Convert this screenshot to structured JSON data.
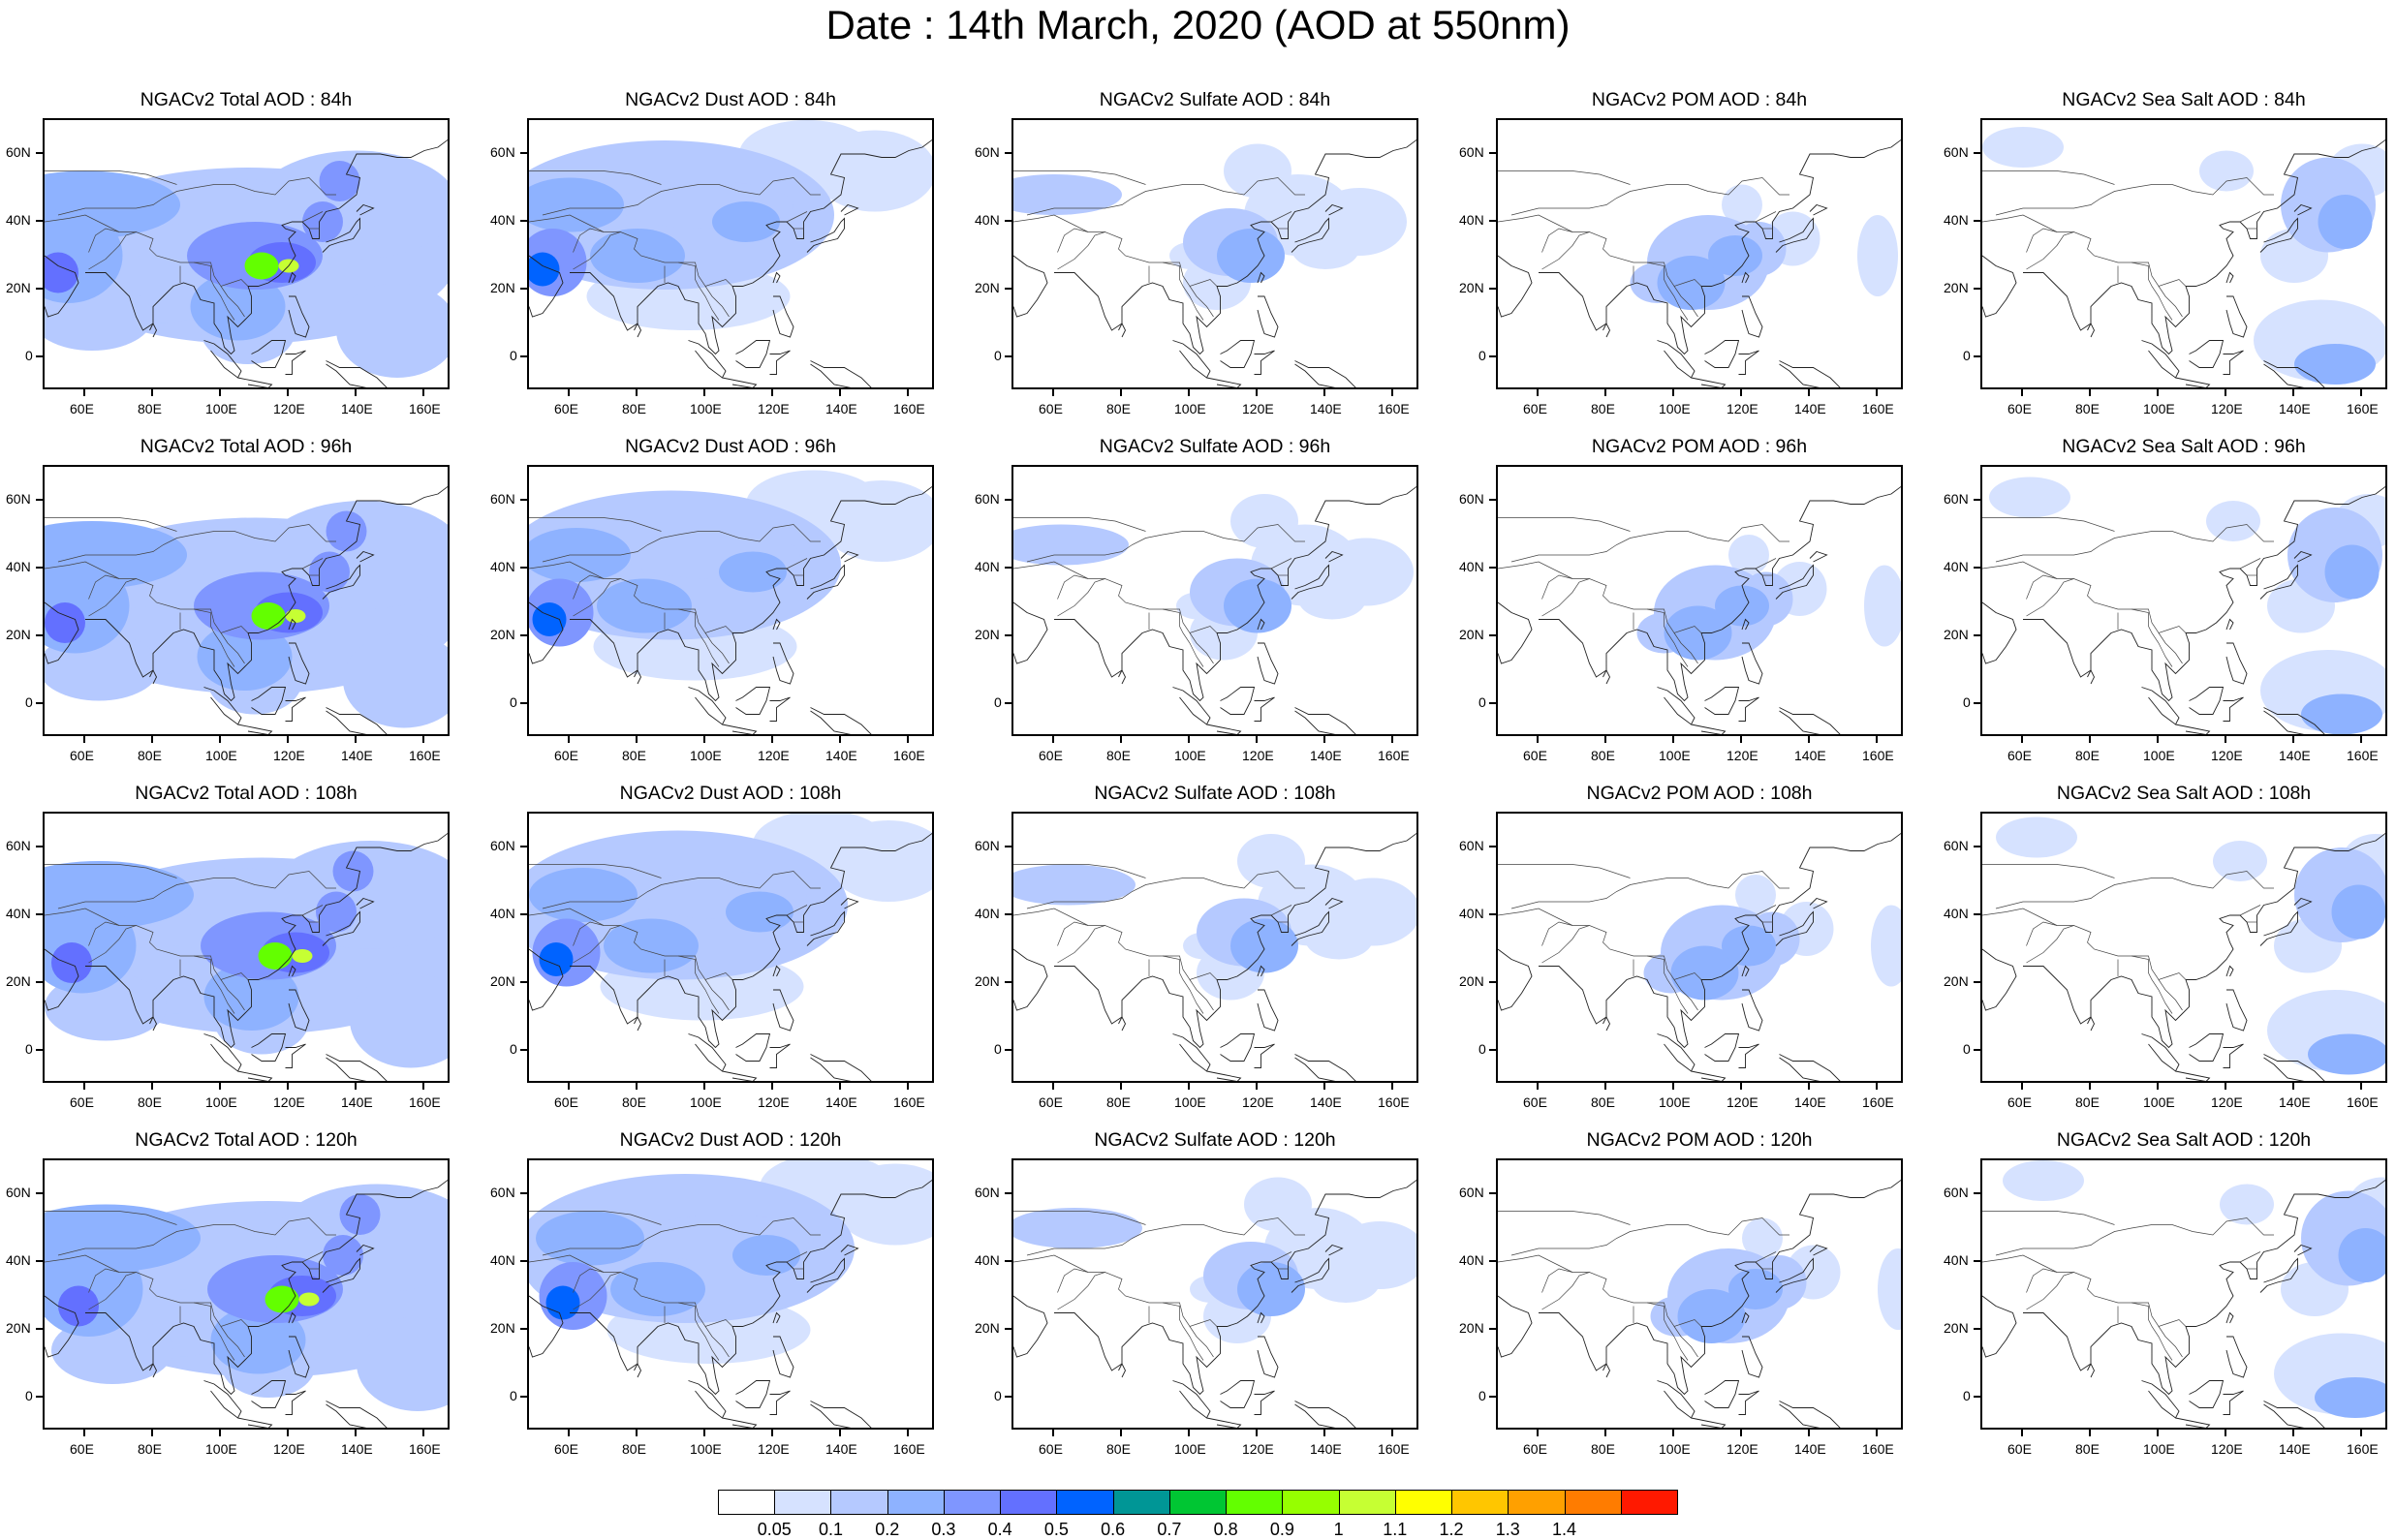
{
  "title": "Date : 14th March, 2020 (AOD at 550nm)",
  "panels": [
    [
      "NGACv2 Total AOD : 84h",
      "NGACv2 Dust AOD : 84h",
      "NGACv2 Sulfate AOD : 84h",
      "NGACv2 POM AOD : 84h",
      "NGACv2 Sea Salt AOD : 84h"
    ],
    [
      "NGACv2 Total AOD : 96h",
      "NGACv2 Dust AOD : 96h",
      "NGACv2 Sulfate AOD : 96h",
      "NGACv2 POM AOD : 96h",
      "NGACv2 Sea Salt AOD : 96h"
    ],
    [
      "NGACv2 Total AOD : 108h",
      "NGACv2 Dust AOD : 108h",
      "NGACv2 Sulfate AOD : 108h",
      "NGACv2 POM AOD : 108h",
      "NGACv2 Sea Salt AOD : 108h"
    ],
    [
      "NGACv2 Total AOD : 120h",
      "NGACv2 Dust AOD : 120h",
      "NGACv2 Sulfate AOD : 120h",
      "NGACv2 POM AOD : 120h",
      "NGACv2 Sea Salt  AOD : 120h"
    ]
  ],
  "lon_ticks": [
    "60E",
    "80E",
    "100E",
    "120E",
    "140E",
    "160E"
  ],
  "lat_ticks": [
    "60N",
    "40N",
    "20N",
    "0"
  ],
  "colorbar": {
    "labels": [
      "0.05",
      "0.1",
      "0.2",
      "0.3",
      "0.4",
      "0.5",
      "0.6",
      "0.7",
      "0.8",
      "0.9",
      "1",
      "1.1",
      "1.2",
      "1.3",
      "1.4"
    ],
    "colors": [
      "#ffffff",
      "#d6e2ff",
      "#b5c9ff",
      "#8eb2ff",
      "#7f96ff",
      "#6370ff",
      "#0063ff",
      "#009696",
      "#00c633",
      "#63ff00",
      "#96ff00",
      "#c6ff33",
      "#ffff00",
      "#ffc600",
      "#ffa000",
      "#ff7c00",
      "#ff1900"
    ]
  }
}
